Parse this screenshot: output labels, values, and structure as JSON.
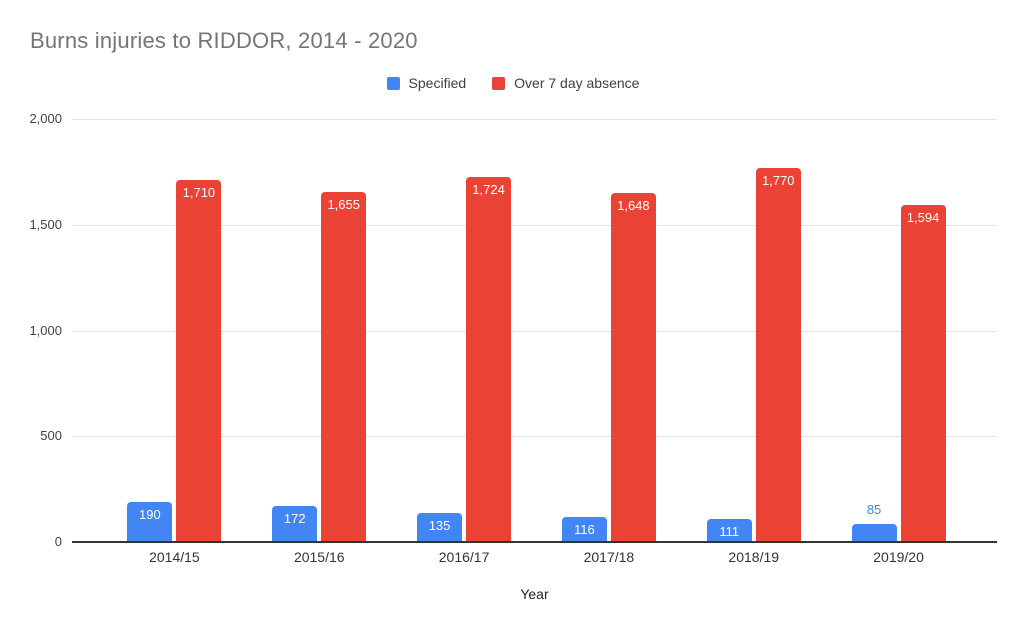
{
  "chart_data": {
    "type": "bar",
    "title": "Burns injuries to RIDDOR, 2014 - 2020",
    "categories": [
      "2014/15",
      "2015/16",
      "2016/17",
      "2017/18",
      "2018/19",
      "2019/20"
    ],
    "series": [
      {
        "name": "Specified",
        "color": "#4285F4",
        "values": [
          190,
          172,
          135,
          116,
          111,
          85
        ]
      },
      {
        "name": "Over 7 day absence",
        "color": "#EA4335",
        "values": [
          1710,
          1655,
          1724,
          1648,
          1770,
          1594
        ]
      }
    ],
    "data_labels": [
      [
        "190",
        "172",
        "135",
        "116",
        "111",
        "85"
      ],
      [
        "1,710",
        "1,655",
        "1,724",
        "1,648",
        "1,770",
        "1,594"
      ]
    ],
    "xlabel": "Year",
    "ylabel": "",
    "ylim": [
      0,
      2000
    ],
    "ytick_values": [
      0,
      500,
      1000,
      1500,
      2000
    ],
    "ytick_labels": [
      "0",
      "500",
      "1,000",
      "1,500",
      "2,000"
    ],
    "grid": true,
    "legend_position": "top"
  },
  "colors": {
    "title_text": "#757575",
    "axis_text": "#424242",
    "category_text": "#333333",
    "gridline": "#e3e3e3",
    "baseline": "#333333",
    "background": "#ffffff",
    "bar_label_inside": "#ffffff"
  }
}
